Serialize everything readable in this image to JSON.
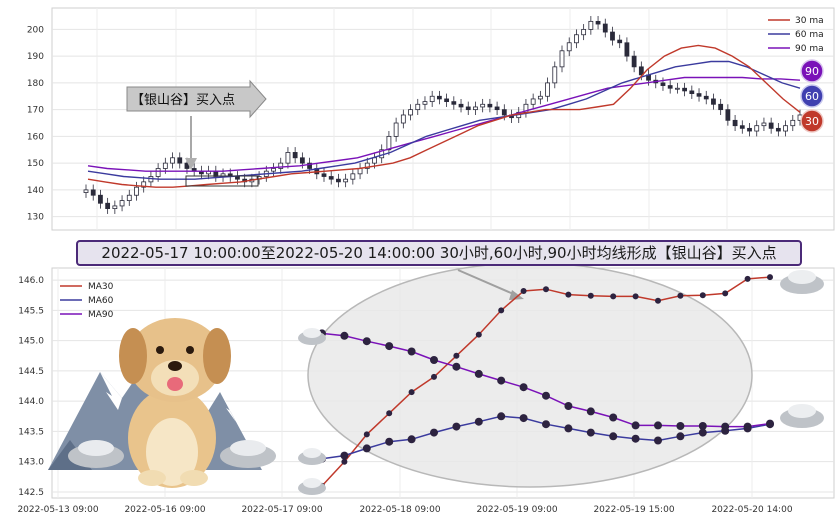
{
  "banner_text": "2022-05-17 10:00:00至2022-05-20 14:00:00 30小时,60小时,90小时均线形成【银山谷】买入点",
  "buy_label": "【银山谷】买入点",
  "colors": {
    "ma30": "#c0392b",
    "ma60": "#3b3b9e",
    "ma90": "#7a12b8",
    "candle": "#2a2a3a",
    "badge30": "#c0392b",
    "badge60": "#4040b0",
    "badge90": "#7a12b8"
  },
  "chart_data": [
    {
      "type": "line",
      "subtype": "candlestick_with_moving_averages",
      "ylim": [
        125,
        208
      ],
      "y_ticks": [
        130,
        140,
        150,
        160,
        170,
        180,
        190,
        200
      ],
      "legend": [
        "30 ma",
        "60 ma",
        "90 ma"
      ],
      "legend_placement": "top-right",
      "badges": [
        "90",
        "60",
        "30"
      ],
      "close_series": [
        140,
        138,
        135,
        133,
        134,
        136,
        138,
        141,
        143,
        145,
        148,
        150,
        152,
        150,
        148,
        147,
        146,
        147,
        145,
        146,
        145,
        144,
        143,
        144,
        145,
        147,
        148,
        150,
        154,
        152,
        150,
        148,
        146,
        145,
        144,
        143,
        144,
        146,
        148,
        150,
        152,
        155,
        160,
        165,
        168,
        170,
        172,
        173,
        175,
        174,
        173,
        172,
        171,
        170,
        171,
        172,
        171,
        170,
        168,
        167,
        169,
        172,
        174,
        175,
        180,
        186,
        192,
        195,
        198,
        200,
        203,
        202,
        199,
        196,
        195,
        190,
        186,
        183,
        181,
        180,
        179,
        178,
        178,
        177,
        176,
        175,
        174,
        172,
        170,
        166,
        164,
        163,
        162,
        164,
        165,
        163,
        162,
        164,
        166,
        168
      ],
      "ma30": [
        144,
        143,
        142,
        141.5,
        141,
        141,
        141.5,
        142,
        142.5,
        143,
        144,
        145,
        146,
        146.5,
        147,
        147.5,
        148,
        149,
        150,
        152,
        155,
        158,
        161,
        164,
        166,
        168,
        169,
        170,
        170,
        170,
        171,
        172,
        178,
        185,
        190,
        193,
        194,
        193,
        190,
        186,
        180,
        174,
        169
      ],
      "ma60": [
        147,
        146,
        145,
        144.5,
        144,
        144,
        144,
        144.5,
        145,
        145.5,
        146,
        146.5,
        147,
        148,
        149,
        150,
        152,
        154,
        157,
        160,
        162,
        164,
        166,
        167,
        168,
        169,
        170,
        172,
        174,
        177,
        180,
        182,
        184,
        186,
        187,
        188,
        188,
        186,
        183,
        180,
        178
      ],
      "ma90": [
        149,
        148,
        147.5,
        147,
        147,
        147,
        147,
        147,
        147.5,
        148,
        148.5,
        149,
        150,
        151,
        152,
        154,
        156,
        158,
        160,
        162,
        164,
        166,
        168,
        170,
        172,
        174,
        176,
        178,
        179,
        180,
        181,
        182,
        182,
        182,
        182,
        181.5,
        181.5,
        181
      ]
    },
    {
      "type": "line",
      "ylim": [
        142.4,
        146.2
      ],
      "y_ticks": [
        142.5,
        143.0,
        143.5,
        144.0,
        144.5,
        145.0,
        145.5,
        146.0
      ],
      "x_tick_labels": [
        "2022-05-13 09:00",
        "2022-05-16 09:00",
        "2022-05-17 09:00",
        "2022-05-18 09:00",
        "2022-05-19 09:00",
        "2022-05-19 15:00",
        "2022-05-20 14:00"
      ],
      "legend": [
        "MA30",
        "MA60",
        "MA90"
      ],
      "legend_placement": "top-left",
      "series": [
        {
          "name": "MA30",
          "values": [
            142.6,
            143.0,
            143.45,
            143.8,
            144.15,
            144.4,
            144.75,
            145.1,
            145.5,
            145.82,
            145.85,
            145.76,
            145.74,
            145.73,
            145.73,
            145.66,
            145.74,
            145.75,
            145.78,
            146.02,
            146.05
          ]
        },
        {
          "name": "MA60",
          "values": [
            143.05,
            143.1,
            143.22,
            143.33,
            143.37,
            143.48,
            143.58,
            143.66,
            143.75,
            143.72,
            143.62,
            143.55,
            143.48,
            143.42,
            143.38,
            143.35,
            143.42,
            143.48,
            143.51,
            143.55,
            143.62
          ]
        },
        {
          "name": "MA90",
          "values": [
            145.12,
            145.08,
            144.99,
            144.91,
            144.82,
            144.68,
            144.57,
            144.45,
            144.34,
            144.23,
            144.09,
            143.92,
            143.83,
            143.73,
            143.6,
            143.6,
            143.59,
            143.59,
            143.58,
            143.58,
            143.63
          ]
        }
      ]
    }
  ]
}
